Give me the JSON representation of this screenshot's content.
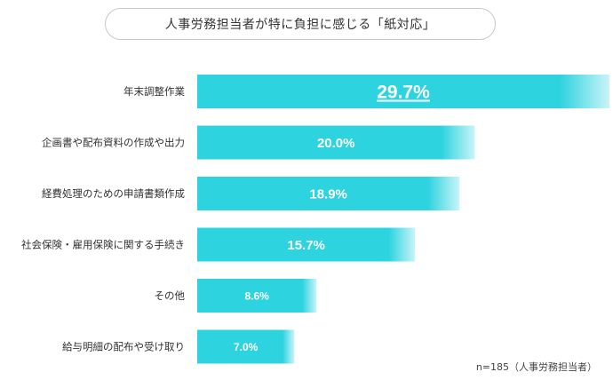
{
  "chart_data": {
    "type": "bar",
    "orientation": "horizontal",
    "title": "人事労務担当者が特に負担に感じる「紙対応」",
    "categories": [
      "年末調整作業",
      "企画書や配布資料の作成や出力",
      "経費処理のための申請書類作成",
      "社会保険・雇用保険に関する手続き",
      "その他",
      "給与明細の配布や受け取り"
    ],
    "values": [
      29.7,
      20.0,
      18.9,
      15.7,
      8.6,
      7.0
    ],
    "value_labels": [
      "29.7%",
      "20.0%",
      "18.9%",
      "15.7%",
      "8.6%",
      "7.0%"
    ],
    "unit": "%",
    "note": "n=185（人事労務担当者）",
    "bar_color": "#2ed3e0",
    "bar_color_light": "#c9f4f8",
    "highlight_index": 0
  }
}
